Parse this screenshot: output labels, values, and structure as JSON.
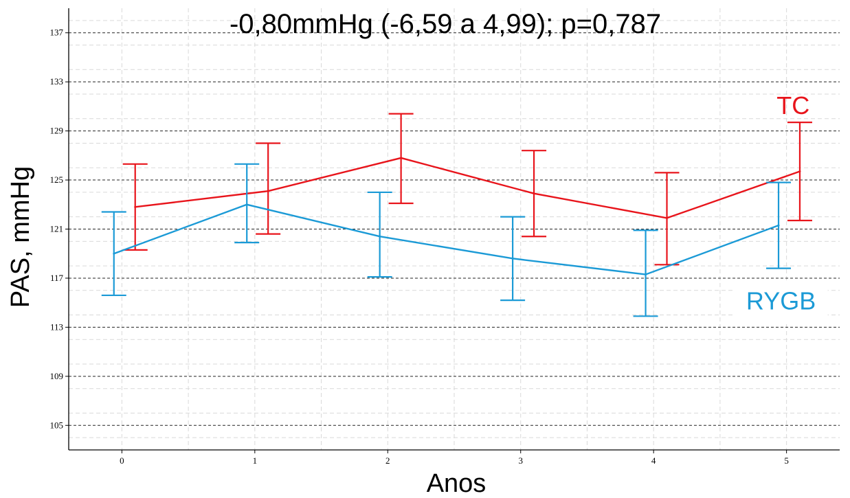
{
  "chart_data": {
    "type": "line",
    "title": "-0,80mmHg (-6,59 a 4,99); p=0,787",
    "xlabel": "Anos",
    "ylabel": "PAS, mmHg",
    "x": [
      0,
      1,
      2,
      3,
      4,
      5
    ],
    "x_ticks": [
      "0",
      "1",
      "2",
      "3",
      "4",
      "5"
    ],
    "y_ticks": [
      "105",
      "109",
      "113",
      "117",
      "121",
      "125",
      "129",
      "133",
      "137"
    ],
    "xlim": [
      -0.4,
      5.4
    ],
    "ylim": [
      103,
      139
    ],
    "grid": true,
    "series": [
      {
        "name": "TC",
        "color": "#e8141b",
        "values": [
          122.8,
          124.1,
          126.8,
          123.9,
          121.9,
          125.7
        ],
        "lower": [
          119.3,
          120.6,
          123.1,
          120.4,
          118.1,
          121.7
        ],
        "upper": [
          126.3,
          128.0,
          130.4,
          127.4,
          125.6,
          129.7
        ]
      },
      {
        "name": "RYGB",
        "color": "#1b9ad6",
        "values": [
          119.0,
          123.0,
          120.4,
          118.6,
          117.3,
          121.3
        ],
        "lower": [
          115.6,
          119.9,
          117.1,
          115.2,
          113.9,
          117.8
        ],
        "upper": [
          122.4,
          126.3,
          124.0,
          122.0,
          120.9,
          124.8
        ]
      }
    ]
  }
}
